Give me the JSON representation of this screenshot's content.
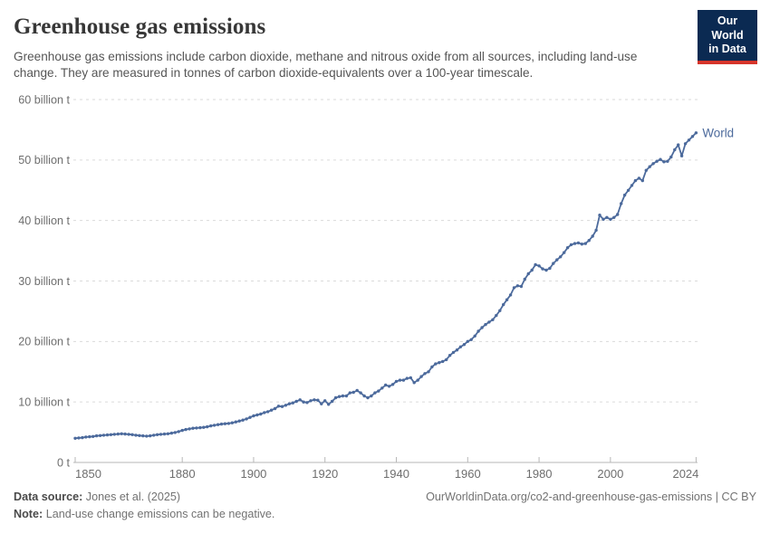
{
  "header": {
    "title": "Greenhouse gas emissions",
    "subtitle": "Greenhouse gas emissions include carbon dioxide, methane and nitrous oxide from all sources, including land-use change. They are measured in tonnes of carbon dioxide-equivalents over a 100-year timescale.",
    "logo": {
      "line1": "Our World",
      "line2": "in Data"
    }
  },
  "footer": {
    "source_label": "Data source:",
    "source_value": "Jones et al. (2025)",
    "note_label": "Note:",
    "note_value": "Land-use change emissions can be negative.",
    "attribution": "OurWorldinData.org/co2-and-greenhouse-gas-emissions | CC BY"
  },
  "colors": {
    "series_blue": "#4C6A9C",
    "logo_navy": "#0b2a52",
    "logo_red": "#d7352b",
    "axis_line": "#b7b7b7",
    "gridline": "#dadada",
    "tick_text": "#6e6e6e",
    "title_text": "#373737",
    "subtitle_text": "#555555"
  },
  "chart_data": {
    "type": "line",
    "title": "Greenhouse gas emissions",
    "xlabel": "",
    "ylabel": "",
    "xlim": [
      1850,
      2024
    ],
    "ylim": [
      0,
      60
    ],
    "grid": "horizontal-dashed",
    "legend_position": "end-of-line-label",
    "xticks": [
      1850,
      1880,
      1900,
      1920,
      1940,
      1960,
      1980,
      2000,
      2024
    ],
    "yticks": [
      {
        "value": 0,
        "label": "0 t"
      },
      {
        "value": 10,
        "label": "10 billion t"
      },
      {
        "value": 20,
        "label": "20 billion t"
      },
      {
        "value": 30,
        "label": "30 billion t"
      },
      {
        "value": 40,
        "label": "40 billion t"
      },
      {
        "value": 50,
        "label": "50 billion t"
      },
      {
        "value": 60,
        "label": "60 billion t"
      }
    ],
    "unit": "billion tonnes CO2-equivalents",
    "series": [
      {
        "name": "World",
        "color": "#4C6A9C",
        "x_start": 1850,
        "x_step": 1,
        "x_end": 2024,
        "values": [
          4.0,
          4.05,
          4.1,
          4.2,
          4.25,
          4.3,
          4.4,
          4.45,
          4.5,
          4.55,
          4.6,
          4.65,
          4.7,
          4.75,
          4.7,
          4.65,
          4.6,
          4.5,
          4.45,
          4.4,
          4.35,
          4.4,
          4.5,
          4.6,
          4.65,
          4.7,
          4.75,
          4.85,
          4.95,
          5.1,
          5.3,
          5.45,
          5.55,
          5.65,
          5.7,
          5.75,
          5.8,
          5.9,
          6.05,
          6.15,
          6.25,
          6.35,
          6.4,
          6.45,
          6.55,
          6.7,
          6.85,
          7.0,
          7.2,
          7.45,
          7.7,
          7.85,
          8.0,
          8.25,
          8.4,
          8.65,
          8.9,
          9.3,
          9.25,
          9.45,
          9.7,
          9.85,
          10.1,
          10.35,
          10.0,
          9.9,
          10.2,
          10.35,
          10.3,
          9.7,
          10.2,
          9.6,
          10.1,
          10.7,
          10.9,
          11.0,
          11.0,
          11.5,
          11.6,
          11.9,
          11.5,
          11.0,
          10.7,
          11.0,
          11.5,
          11.8,
          12.3,
          12.8,
          12.6,
          12.9,
          13.4,
          13.6,
          13.6,
          13.9,
          14.0,
          13.2,
          13.6,
          14.2,
          14.7,
          15.0,
          15.8,
          16.3,
          16.5,
          16.7,
          17.0,
          17.7,
          18.2,
          18.6,
          19.1,
          19.5,
          20.0,
          20.3,
          20.9,
          21.7,
          22.3,
          22.8,
          23.2,
          23.6,
          24.3,
          25.1,
          26.1,
          26.9,
          27.7,
          28.9,
          29.2,
          29.1,
          30.3,
          31.2,
          31.8,
          32.7,
          32.5,
          32.0,
          31.8,
          32.1,
          32.9,
          33.5,
          34.0,
          34.7,
          35.5,
          36.0,
          36.2,
          36.3,
          36.1,
          36.2,
          36.7,
          37.4,
          38.4,
          40.9,
          40.2,
          40.5,
          40.2,
          40.5,
          41.0,
          42.8,
          44.2,
          45.0,
          45.8,
          46.6,
          47.0,
          46.6,
          48.3,
          48.9,
          49.4,
          49.8,
          50.1,
          49.7,
          49.8,
          50.5,
          51.7,
          52.5,
          50.7,
          52.7,
          53.3,
          53.9,
          54.5
        ]
      }
    ]
  }
}
